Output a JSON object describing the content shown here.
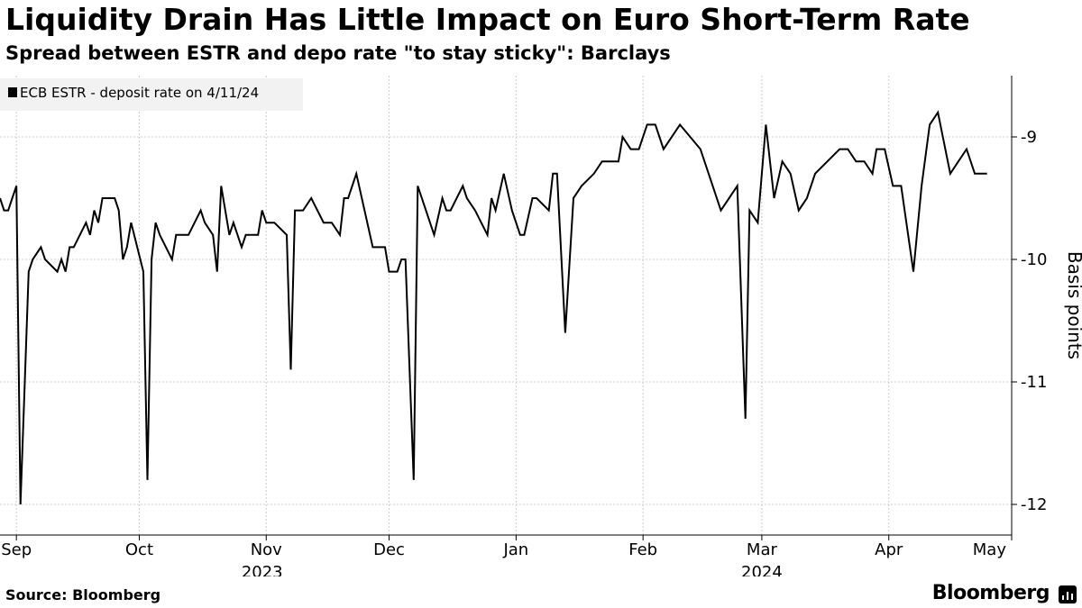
{
  "header": {
    "title": "Liquidity Drain Has Little Impact on Euro Short-Term Rate",
    "subtitle": "Spread between ESTR and depo rate \"to stay sticky\": Barclays"
  },
  "footer": {
    "source": "Source: Bloomberg",
    "brand": "Bloomberg"
  },
  "chart_data": {
    "type": "line",
    "ylabel": "Basis points",
    "ylim": [
      -12.25,
      -8.5
    ],
    "yticks": [
      -9,
      -10,
      -11,
      -12
    ],
    "yticklabels": [
      "-9",
      "-10",
      "-11",
      "-12"
    ],
    "xlim": [
      "2023-08-28",
      "2024-05-01"
    ],
    "months": [
      {
        "label": "Sep",
        "date": "2023-09-01"
      },
      {
        "label": "Oct",
        "date": "2023-10-01"
      },
      {
        "label": "Nov",
        "date": "2023-11-01"
      },
      {
        "label": "Dec",
        "date": "2023-12-01"
      },
      {
        "label": "Jan",
        "date": "2024-01-01"
      },
      {
        "label": "Feb",
        "date": "2024-02-01"
      },
      {
        "label": "Mar",
        "date": "2024-03-01"
      },
      {
        "label": "Apr",
        "date": "2024-04-01"
      },
      {
        "label": "May",
        "date": "2024-05-01"
      }
    ],
    "years": [
      {
        "label": "2023",
        "date": "2023-10-31"
      },
      {
        "label": "2024",
        "date": "2024-03-01"
      }
    ],
    "grid": true,
    "legend_position": "top-left",
    "series": [
      {
        "name": "ECB ESTR - deposit rate on 4/11/24",
        "color": "#000000",
        "points": [
          [
            "2023-08-28",
            -9.5
          ],
          [
            "2023-08-29",
            -9.6
          ],
          [
            "2023-08-30",
            -9.6
          ],
          [
            "2023-08-31",
            -9.5
          ],
          [
            "2023-09-01",
            -9.4
          ],
          [
            "2023-09-02",
            -12.0
          ],
          [
            "2023-09-04",
            -10.1
          ],
          [
            "2023-09-05",
            -10.0
          ],
          [
            "2023-09-07",
            -9.9
          ],
          [
            "2023-09-08",
            -10.0
          ],
          [
            "2023-09-11",
            -10.1
          ],
          [
            "2023-09-12",
            -10.0
          ],
          [
            "2023-09-13",
            -10.1
          ],
          [
            "2023-09-14",
            -9.9
          ],
          [
            "2023-09-15",
            -9.9
          ],
          [
            "2023-09-18",
            -9.7
          ],
          [
            "2023-09-19",
            -9.8
          ],
          [
            "2023-09-20",
            -9.6
          ],
          [
            "2023-09-21",
            -9.7
          ],
          [
            "2023-09-22",
            -9.5
          ],
          [
            "2023-09-25",
            -9.5
          ],
          [
            "2023-09-26",
            -9.6
          ],
          [
            "2023-09-27",
            -10.0
          ],
          [
            "2023-09-28",
            -9.9
          ],
          [
            "2023-09-29",
            -9.7
          ],
          [
            "2023-10-02",
            -10.1
          ],
          [
            "2023-10-03",
            -11.8
          ],
          [
            "2023-10-04",
            -10.0
          ],
          [
            "2023-10-05",
            -9.7
          ],
          [
            "2023-10-06",
            -9.8
          ],
          [
            "2023-10-09",
            -10.0
          ],
          [
            "2023-10-10",
            -9.8
          ],
          [
            "2023-10-12",
            -9.8
          ],
          [
            "2023-10-13",
            -9.8
          ],
          [
            "2023-10-16",
            -9.6
          ],
          [
            "2023-10-17",
            -9.7
          ],
          [
            "2023-10-19",
            -9.8
          ],
          [
            "2023-10-20",
            -10.1
          ],
          [
            "2023-10-21",
            -9.4
          ],
          [
            "2023-10-23",
            -9.8
          ],
          [
            "2023-10-24",
            -9.7
          ],
          [
            "2023-10-26",
            -9.9
          ],
          [
            "2023-10-27",
            -9.8
          ],
          [
            "2023-10-30",
            -9.8
          ],
          [
            "2023-10-31",
            -9.6
          ],
          [
            "2023-11-01",
            -9.7
          ],
          [
            "2023-11-03",
            -9.7
          ],
          [
            "2023-11-06",
            -9.8
          ],
          [
            "2023-11-07",
            -10.9
          ],
          [
            "2023-11-08",
            -9.6
          ],
          [
            "2023-11-10",
            -9.6
          ],
          [
            "2023-11-12",
            -9.5
          ],
          [
            "2023-11-15",
            -9.7
          ],
          [
            "2023-11-17",
            -9.7
          ],
          [
            "2023-11-19",
            -9.8
          ],
          [
            "2023-11-20",
            -9.5
          ],
          [
            "2023-11-21",
            -9.5
          ],
          [
            "2023-11-23",
            -9.3
          ],
          [
            "2023-11-27",
            -9.9
          ],
          [
            "2023-11-28",
            -9.9
          ],
          [
            "2023-11-30",
            -9.9
          ],
          [
            "2023-12-01",
            -10.1
          ],
          [
            "2023-12-03",
            -10.1
          ],
          [
            "2023-12-04",
            -10.0
          ],
          [
            "2023-12-05",
            -10.0
          ],
          [
            "2023-12-07",
            -11.8
          ],
          [
            "2023-12-08",
            -9.4
          ],
          [
            "2023-12-10",
            -9.6
          ],
          [
            "2023-12-12",
            -9.8
          ],
          [
            "2023-12-14",
            -9.5
          ],
          [
            "2023-12-15",
            -9.6
          ],
          [
            "2023-12-16",
            -9.6
          ],
          [
            "2023-12-19",
            -9.4
          ],
          [
            "2023-12-20",
            -9.5
          ],
          [
            "2023-12-22",
            -9.6
          ],
          [
            "2023-12-25",
            -9.8
          ],
          [
            "2023-12-26",
            -9.5
          ],
          [
            "2023-12-27",
            -9.6
          ],
          [
            "2023-12-29",
            -9.3
          ],
          [
            "2023-12-31",
            -9.6
          ],
          [
            "2024-01-02",
            -9.8
          ],
          [
            "2024-01-03",
            -9.8
          ],
          [
            "2024-01-05",
            -9.5
          ],
          [
            "2024-01-06",
            -9.5
          ],
          [
            "2024-01-09",
            -9.6
          ],
          [
            "2024-01-10",
            -9.3
          ],
          [
            "2024-01-11",
            -9.3
          ],
          [
            "2024-01-13",
            -10.6
          ],
          [
            "2024-01-15",
            -9.5
          ],
          [
            "2024-01-17",
            -9.4
          ],
          [
            "2024-01-20",
            -9.3
          ],
          [
            "2024-01-22",
            -9.2
          ],
          [
            "2024-01-24",
            -9.2
          ],
          [
            "2024-01-26",
            -9.2
          ],
          [
            "2024-01-27",
            -9.0
          ],
          [
            "2024-01-29",
            -9.1
          ],
          [
            "2024-01-31",
            -9.1
          ],
          [
            "2024-02-02",
            -8.9
          ],
          [
            "2024-02-04",
            -8.9
          ],
          [
            "2024-02-06",
            -9.1
          ],
          [
            "2024-02-10",
            -8.9
          ],
          [
            "2024-02-15",
            -9.1
          ],
          [
            "2024-02-17",
            -9.3
          ],
          [
            "2024-02-20",
            -9.6
          ],
          [
            "2024-02-24",
            -9.4
          ],
          [
            "2024-02-26",
            -11.3
          ],
          [
            "2024-02-27",
            -9.6
          ],
          [
            "2024-02-29",
            -9.7
          ],
          [
            "2024-03-02",
            -8.9
          ],
          [
            "2024-03-04",
            -9.5
          ],
          [
            "2024-03-06",
            -9.2
          ],
          [
            "2024-03-08",
            -9.3
          ],
          [
            "2024-03-10",
            -9.6
          ],
          [
            "2024-03-12",
            -9.5
          ],
          [
            "2024-03-14",
            -9.3
          ],
          [
            "2024-03-17",
            -9.2
          ],
          [
            "2024-03-20",
            -9.1
          ],
          [
            "2024-03-22",
            -9.1
          ],
          [
            "2024-03-24",
            -9.2
          ],
          [
            "2024-03-26",
            -9.2
          ],
          [
            "2024-03-28",
            -9.3
          ],
          [
            "2024-03-29",
            -9.1
          ],
          [
            "2024-03-31",
            -9.1
          ],
          [
            "2024-04-02",
            -9.4
          ],
          [
            "2024-04-04",
            -9.4
          ],
          [
            "2024-04-07",
            -10.1
          ],
          [
            "2024-04-09",
            -9.4
          ],
          [
            "2024-04-11",
            -8.9
          ],
          [
            "2024-04-13",
            -8.8
          ],
          [
            "2024-04-16",
            -9.3
          ],
          [
            "2024-04-18",
            -9.2
          ],
          [
            "2024-04-20",
            -9.1
          ],
          [
            "2024-04-22",
            -9.3
          ],
          [
            "2024-04-25",
            -9.3
          ]
        ]
      }
    ]
  }
}
